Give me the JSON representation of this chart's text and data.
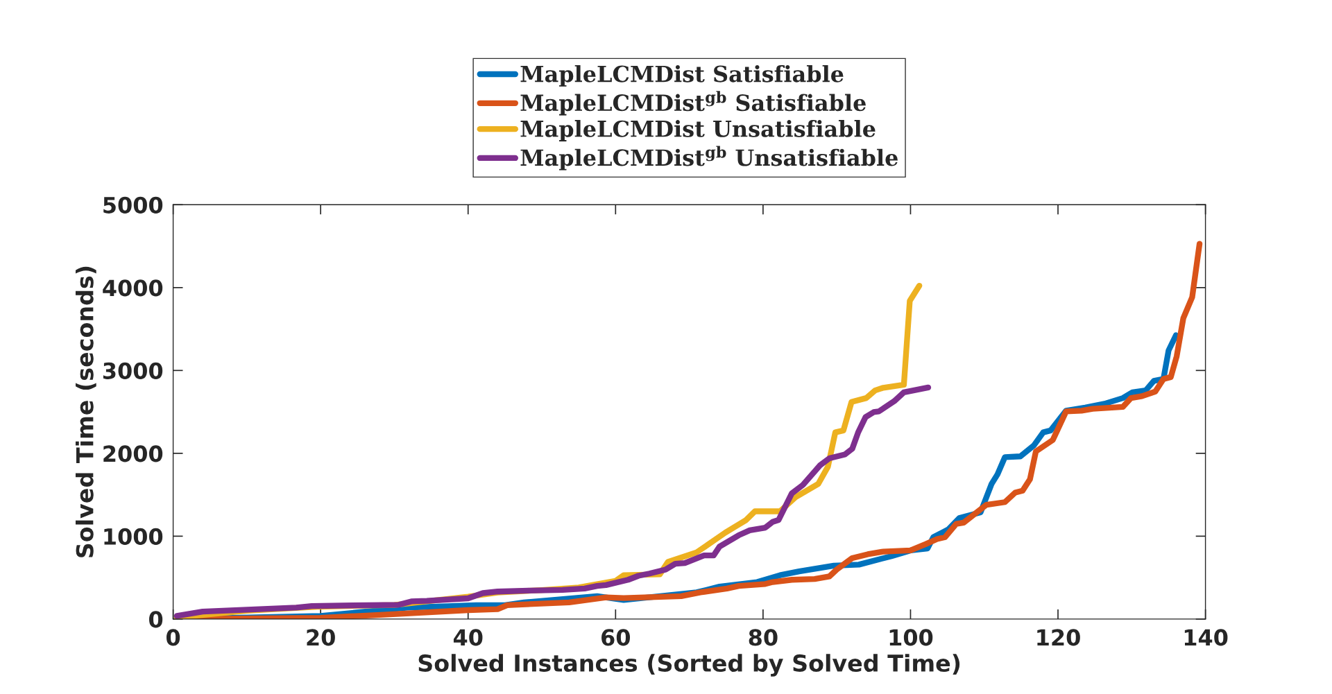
{
  "chart_data": {
    "type": "line",
    "xlabel": "Solved Instances (Sorted by Solved Time)",
    "ylabel": "Solved Time (seconds)",
    "xlim": [
      0,
      140
    ],
    "xticks": [
      0,
      20,
      40,
      60,
      80,
      100,
      120,
      140
    ],
    "ylim": [
      0,
      5000
    ],
    "yticks": [
      0,
      1000,
      2000,
      3000,
      4000,
      5000
    ],
    "grid": false,
    "legend": "top",
    "marker": "none",
    "line_style": "solid",
    "series": [
      {
        "name": "MapleLCMDist Satisfiable",
        "color": "#0072bd",
        "x": [
          0.5,
          20,
          31.8,
          41.1,
          45,
          47.6,
          57.5,
          61.1,
          71,
          74.1,
          79.2,
          82.3,
          84.9,
          89.6,
          93,
          97.4,
          100,
          102.3,
          103.1,
          105.1,
          106.6,
          109.5,
          111,
          111.8,
          112.8,
          114.9,
          116.7,
          118,
          119,
          121.1,
          123.7,
          126.3,
          128.8,
          130.1,
          131.9,
          133,
          134.3,
          135,
          136
        ],
        "values": [
          0,
          37,
          138,
          168,
          168,
          201,
          276,
          230,
          322,
          391,
          446,
          529,
          575,
          644,
          657,
          759,
          828,
          851,
          989,
          1080,
          1218,
          1287,
          1632,
          1747,
          1954,
          1963,
          2092,
          2253,
          2276,
          2515,
          2552,
          2598,
          2667,
          2736,
          2759,
          2874,
          2897,
          3241,
          3425
        ]
      },
      {
        "name": "MapleLCMDist$^{gb}$ Satisfiable",
        "color": "#d95319",
        "x": [
          0.5,
          20,
          28.5,
          40,
          44,
          45.3,
          53.7,
          58.7,
          61.1,
          68.9,
          71.5,
          75.1,
          76.7,
          80.3,
          81.3,
          83.9,
          87,
          89,
          90,
          92.1,
          94.2,
          96.3,
          100,
          102.1,
          103.6,
          104.7,
          106.2,
          107.2,
          110.3,
          112.8,
          114.2,
          115.2,
          116.2,
          117,
          119.3,
          121.1,
          123.2,
          124.7,
          128.8,
          129.9,
          131.4,
          133.2,
          134.3,
          135.3,
          136.1,
          137,
          138.2,
          139.2
        ],
        "values": [
          0,
          15,
          52,
          108,
          119,
          168,
          201,
          261,
          253,
          276,
          322,
          368,
          400,
          423,
          446,
          474,
          483,
          515,
          598,
          736,
          782,
          814,
          828,
          906,
          966,
          989,
          1149,
          1163,
          1379,
          1411,
          1526,
          1549,
          1687,
          2023,
          2161,
          2506,
          2515,
          2538,
          2561,
          2667,
          2690,
          2745,
          2897,
          2920,
          3172,
          3632,
          3885,
          4529
        ]
      },
      {
        "name": "MapleLCMDist Unsatisfiable",
        "color": "#edb120",
        "x": [
          0.5,
          10,
          20,
          30,
          36,
          40,
          44,
          50,
          55,
          60,
          61.1,
          66,
          67.1,
          71,
          74.9,
          77.7,
          78.9,
          82.3,
          84.4,
          87.5,
          88.8,
          89.8,
          90.9,
          92,
          94,
          95.2,
          96.3,
          99.1,
          99.9,
          101.2
        ],
        "values": [
          20,
          100,
          150,
          170,
          230,
          270,
          320,
          350,
          380,
          460,
          530,
          540,
          690,
          805,
          1044,
          1195,
          1300,
          1300,
          1471,
          1632,
          1839,
          2253,
          2276,
          2620,
          2667,
          2759,
          2791,
          2828,
          3839,
          4023
        ]
      },
      {
        "name": "MapleLCMDist$^{gb}$ Unsatisfiable",
        "color": "#7e2f8e",
        "x": [
          0.5,
          4,
          11.7,
          16.7,
          18.8,
          24.3,
          30.6,
          32.3,
          34.4,
          40,
          42,
          44,
          48.2,
          52.8,
          55.8,
          57.5,
          58.7,
          61.7,
          63.1,
          64.6,
          66.8,
          68.1,
          69.4,
          72,
          73.3,
          74.1,
          76.7,
          78.2,
          80.3,
          81.3,
          82.1,
          83.9,
          85.4,
          87.7,
          89,
          91.1,
          92.1,
          92.9,
          93.9,
          95,
          95.7,
          97.8,
          99.1,
          100.4,
          102.4
        ],
        "values": [
          37,
          90,
          120,
          138,
          157,
          164,
          172,
          213,
          220,
          250,
          313,
          332,
          343,
          351,
          369,
          399,
          410,
          474,
          522,
          549,
          598,
          667,
          676,
          768,
          768,
          874,
          1011,
          1071,
          1103,
          1172,
          1195,
          1517,
          1618,
          1853,
          1940,
          1986,
          2055,
          2253,
          2437,
          2497,
          2506,
          2630,
          2736,
          2759,
          2795
        ]
      }
    ]
  }
}
